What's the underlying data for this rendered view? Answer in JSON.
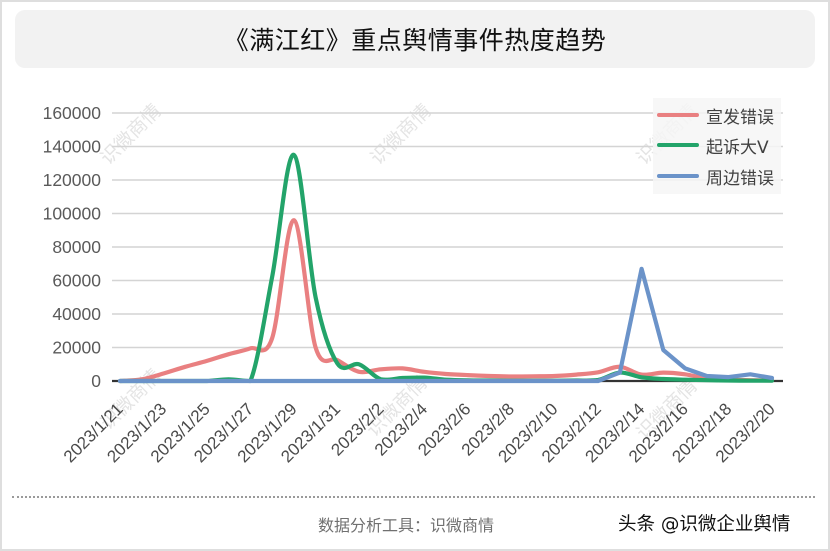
{
  "title": "《满江红》重点舆情事件热度趋势",
  "watermark": "识微商情",
  "footer": {
    "tool_label": "数据分析工具：识微商情",
    "source": "头条 @识微企业舆情"
  },
  "chart_data": {
    "type": "line",
    "title": "《满江红》重点舆情事件热度趋势",
    "xlabel": "",
    "ylabel": "",
    "ylim": [
      0,
      160000
    ],
    "y_ticks": [
      0,
      20000,
      40000,
      60000,
      80000,
      100000,
      120000,
      140000,
      160000
    ],
    "grid": true,
    "legend_position": "top-right",
    "x": [
      "2023/1/21",
      "2023/1/22",
      "2023/1/23",
      "2023/1/24",
      "2023/1/25",
      "2023/1/26",
      "2023/1/27",
      "2023/1/28",
      "2023/1/29",
      "2023/1/30",
      "2023/1/31",
      "2023/2/1",
      "2023/2/2",
      "2023/2/3",
      "2023/2/4",
      "2023/2/5",
      "2023/2/6",
      "2023/2/7",
      "2023/2/8",
      "2023/2/9",
      "2023/2/10",
      "2023/2/11",
      "2023/2/12",
      "2023/2/13",
      "2023/2/14",
      "2023/2/15",
      "2023/2/16",
      "2023/2/17",
      "2023/2/18",
      "2023/2/19",
      "2023/2/20"
    ],
    "x_tick_labels": [
      "2023/1/21",
      "2023/1/23",
      "2023/1/25",
      "2023/1/27",
      "2023/1/29",
      "2023/1/31",
      "2023/2/2",
      "2023/2/4",
      "2023/2/6",
      "2023/2/8",
      "2023/2/10",
      "2023/2/12",
      "2023/2/14",
      "2023/2/16",
      "2023/2/18",
      "2023/2/20"
    ],
    "series": [
      {
        "name": "宣发错误",
        "color": "#E98081",
        "smooth": true,
        "values": [
          0,
          1000,
          4500,
          8500,
          12000,
          16000,
          19500,
          25500,
          96000,
          20000,
          12500,
          5500,
          7000,
          7500,
          5500,
          4200,
          3500,
          3000,
          2700,
          2800,
          3000,
          3800,
          5200,
          8500,
          3800,
          5000,
          4000,
          1500,
          800,
          500,
          300
        ]
      },
      {
        "name": "起诉大V",
        "color": "#23A46A",
        "smooth": true,
        "values": [
          0,
          0,
          0,
          0,
          0,
          1000,
          0,
          62000,
          135000,
          50000,
          10500,
          10000,
          1000,
          1800,
          2000,
          800,
          400,
          300,
          200,
          200,
          200,
          300,
          600,
          5000,
          2200,
          1200,
          800,
          500,
          300,
          200,
          200
        ]
      },
      {
        "name": "周边错误",
        "color": "#6B93C9",
        "smooth": false,
        "values": [
          0,
          0,
          0,
          0,
          0,
          0,
          0,
          0,
          0,
          0,
          0,
          0,
          0,
          0,
          0,
          0,
          0,
          0,
          0,
          0,
          0,
          0,
          0,
          5000,
          67000,
          18500,
          7500,
          3000,
          2300,
          4000,
          1800
        ]
      }
    ]
  }
}
